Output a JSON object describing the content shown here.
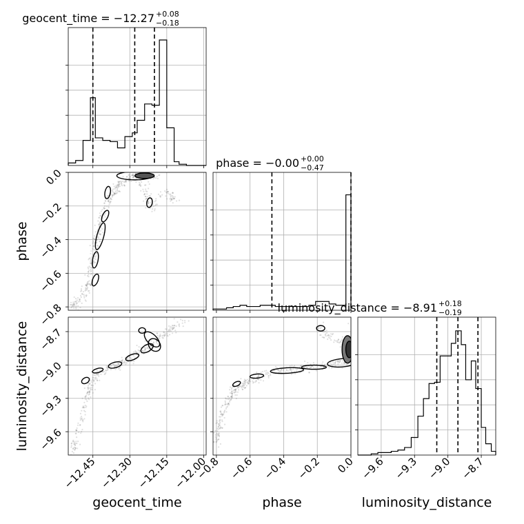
{
  "chart_data": [
    {
      "type": "histogram",
      "panel": "geocent_time",
      "title": "geocent_time = −12.27",
      "title_sup": "+0.08",
      "title_sub": "−0.18",
      "xlim": [
        -12.55,
        -11.99
      ],
      "ylim": [
        0,
        1.0
      ],
      "quantiles": [
        -12.45,
        -12.28,
        -12.2
      ],
      "bins_x": [
        -12.55,
        -12.52,
        -12.49,
        -12.46,
        -12.44,
        -12.41,
        -12.38,
        -12.35,
        -12.32,
        -12.29,
        -12.27,
        -12.24,
        -12.21,
        -12.18,
        -12.15,
        -12.12,
        -12.1,
        -12.07,
        -11.99
      ],
      "counts": [
        0.02,
        0.04,
        0.2,
        0.54,
        0.22,
        0.2,
        0.19,
        0.14,
        0.23,
        0.26,
        0.36,
        0.49,
        0.48,
        1.0,
        0.3,
        0.03,
        0.01,
        0.0
      ]
    },
    {
      "type": "histogram",
      "panel": "phase",
      "title": "phase = −0.00",
      "title_sup": "+0.00",
      "title_sub": "−0.47",
      "xlim": [
        -0.82,
        0.0
      ],
      "ylim": [
        0,
        1.0
      ],
      "quantiles": [
        -0.47,
        0.0
      ],
      "bins_x": [
        -0.82,
        -0.78,
        -0.74,
        -0.7,
        -0.66,
        -0.62,
        -0.58,
        -0.54,
        -0.5,
        -0.45,
        -0.41,
        -0.37,
        -0.33,
        -0.29,
        -0.25,
        -0.21,
        -0.17,
        -0.13,
        -0.09,
        -0.05,
        -0.03,
        0.0
      ],
      "counts": [
        0.01,
        0.01,
        0.02,
        0.03,
        0.04,
        0.03,
        0.03,
        0.04,
        0.04,
        0.03,
        0.03,
        0.03,
        0.03,
        0.03,
        0.04,
        0.07,
        0.07,
        0.05,
        0.04,
        0.04,
        0.92
      ]
    },
    {
      "type": "histogram",
      "panel": "luminosity_distance",
      "title": "luminosity_distance = −8.91",
      "title_sup": "+0.18",
      "title_sub": "−0.19",
      "xlim": [
        -9.81,
        -8.57
      ],
      "ylim": [
        0,
        1.0
      ],
      "quantiles": [
        -9.1,
        -8.91,
        -8.73
      ],
      "bins_x": [
        -9.81,
        -9.75,
        -9.69,
        -9.63,
        -9.57,
        -9.51,
        -9.45,
        -9.39,
        -9.33,
        -9.27,
        -9.22,
        -9.17,
        -9.12,
        -9.07,
        -9.02,
        -8.97,
        -8.93,
        -8.88,
        -8.84,
        -8.79,
        -8.75,
        -8.7,
        -8.66,
        -8.61,
        -8.57
      ],
      "counts": [
        0.0,
        0.0,
        0.01,
        0.02,
        0.02,
        0.03,
        0.04,
        0.06,
        0.14,
        0.31,
        0.45,
        0.57,
        0.58,
        0.79,
        0.79,
        0.89,
        0.99,
        0.88,
        0.6,
        0.75,
        0.53,
        0.22,
        0.09,
        0.03
      ]
    },
    {
      "type": "scatter-contour",
      "panel": "geocent_time vs phase",
      "xlim": [
        -12.55,
        -11.99
      ],
      "ylim": [
        -0.82,
        0.0
      ],
      "ridge": [
        [
          -12.53,
          -0.8
        ],
        [
          -12.51,
          -0.77
        ],
        [
          -12.49,
          -0.73
        ],
        [
          -12.47,
          -0.68
        ],
        [
          -12.46,
          -0.63
        ],
        [
          -12.46,
          -0.57
        ],
        [
          -12.45,
          -0.5
        ],
        [
          -12.44,
          -0.43
        ],
        [
          -12.43,
          -0.37
        ],
        [
          -12.42,
          -0.31
        ],
        [
          -12.41,
          -0.25
        ],
        [
          -12.39,
          -0.18
        ],
        [
          -12.37,
          -0.13
        ],
        [
          -12.35,
          -0.08
        ],
        [
          -12.33,
          -0.05
        ],
        [
          -12.3,
          -0.03
        ],
        [
          -12.26,
          -0.02
        ],
        [
          -12.22,
          -0.02
        ],
        [
          -12.18,
          -0.03
        ]
      ],
      "branch": [
        [
          -12.26,
          -0.06
        ],
        [
          -12.24,
          -0.1
        ],
        [
          -12.23,
          -0.14
        ],
        [
          -12.22,
          -0.18
        ],
        [
          -12.21,
          -0.22
        ],
        [
          -12.15,
          -0.12
        ],
        [
          -12.13,
          -0.14
        ],
        [
          -12.12,
          -0.17
        ]
      ]
    },
    {
      "type": "scatter-contour",
      "panel": "geocent_time vs luminosity_distance",
      "xlim": [
        -12.55,
        -11.99
      ],
      "ylim": [
        -9.81,
        -8.57
      ],
      "ridge": [
        [
          -12.53,
          -9.78
        ],
        [
          -12.52,
          -9.7
        ],
        [
          -12.51,
          -9.58
        ],
        [
          -12.49,
          -9.45
        ],
        [
          -12.48,
          -9.32
        ],
        [
          -12.46,
          -9.22
        ],
        [
          -12.45,
          -9.14
        ],
        [
          -12.43,
          -9.08
        ],
        [
          -12.4,
          -9.03
        ],
        [
          -12.36,
          -9.01
        ],
        [
          -12.33,
          -8.98
        ],
        [
          -12.3,
          -8.94
        ],
        [
          -12.27,
          -8.9
        ],
        [
          -12.24,
          -8.85
        ],
        [
          -12.21,
          -8.8
        ],
        [
          -12.19,
          -8.76
        ],
        [
          -12.16,
          -8.71
        ],
        [
          -12.12,
          -8.66
        ],
        [
          -12.07,
          -8.61
        ]
      ]
    },
    {
      "type": "scatter-contour",
      "panel": "phase vs luminosity_distance",
      "xlim": [
        -0.82,
        0.0
      ],
      "ylim": [
        -9.81,
        -8.57
      ],
      "ridge": [
        [
          -0.8,
          -9.72
        ],
        [
          -0.79,
          -9.6
        ],
        [
          -0.77,
          -9.48
        ],
        [
          -0.74,
          -9.36
        ],
        [
          -0.71,
          -9.27
        ],
        [
          -0.68,
          -9.21
        ],
        [
          -0.64,
          -9.18
        ],
        [
          -0.6,
          -9.13
        ],
        [
          -0.55,
          -9.1
        ],
        [
          -0.48,
          -9.08
        ],
        [
          -0.4,
          -9.05
        ],
        [
          -0.32,
          -9.04
        ],
        [
          -0.24,
          -9.02
        ],
        [
          -0.16,
          -9.01
        ],
        [
          -0.08,
          -8.99
        ],
        [
          -0.02,
          -8.98
        ]
      ],
      "branch": [
        [
          -0.2,
          -8.66
        ],
        [
          -0.17,
          -8.7
        ],
        [
          -0.13,
          -8.73
        ],
        [
          -0.09,
          -8.76
        ],
        [
          -0.05,
          -8.8
        ],
        [
          -0.02,
          -8.84
        ],
        [
          -0.01,
          -8.9
        ],
        [
          -0.01,
          -8.6
        ]
      ]
    }
  ],
  "axes": {
    "geocent_time": {
      "label": "geocent_time",
      "ticks": [
        -12.45,
        -12.3,
        -12.15,
        -12.0
      ],
      "tick_labels": [
        "−12.45",
        "−12.30",
        "−12.15",
        "−12.00"
      ]
    },
    "phase": {
      "label": "phase",
      "ticks": [
        -0.8,
        -0.6,
        -0.4,
        -0.2,
        0.0
      ],
      "tick_labels": [
        "−0.8",
        "−0.6",
        "−0.4",
        "−0.2",
        "0.0"
      ],
      "y_ticks": [
        0.0,
        -0.2,
        -0.4,
        -0.6,
        -0.8
      ],
      "y_tick_labels": [
        "0.0",
        "−0.2",
        "−0.4",
        "−0.6",
        "−0.8"
      ]
    },
    "luminosity_distance": {
      "label": "luminosity_distance",
      "ticks": [
        -9.6,
        -9.3,
        -9.0,
        -8.7
      ],
      "tick_labels": [
        "−9.6",
        "−9.3",
        "−9.0",
        "−8.7"
      ],
      "y_ticks": [
        -8.7,
        -9.0,
        -9.3,
        -9.6
      ],
      "y_tick_labels": [
        "−8.7",
        "−9.0",
        "−9.3",
        "−9.6"
      ]
    }
  },
  "style": {
    "line_color": "#000000",
    "grid_color": "#b0b0b0",
    "point_color": "#555555"
  }
}
